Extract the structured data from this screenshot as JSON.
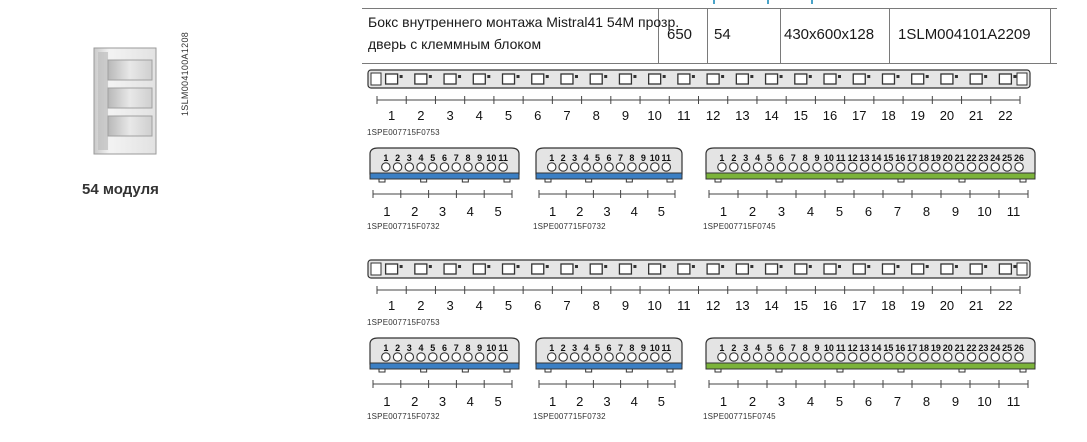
{
  "product": {
    "order_code_vertical": "1SLM004100A1208",
    "modules_caption": "54 модуля"
  },
  "table": {
    "description_line1": "Бокс внутреннего монтажа Mistral41 54M прозр.",
    "description_line2": "дверь с клеммным блоком",
    "weight": "650",
    "modules": "54",
    "dimensions": "430x600x128",
    "order_code": "1SLM004101A2209"
  },
  "strips": [
    {
      "id": "a1",
      "code": "1SPE007715F0753",
      "type": "long",
      "numbers": [
        "1",
        "2",
        "3",
        "4",
        "5",
        "6",
        "7",
        "8",
        "9",
        "10",
        "11",
        "12",
        "13",
        "14",
        "15",
        "16",
        "17",
        "18",
        "19",
        "20",
        "21",
        "22"
      ]
    },
    {
      "id": "b1",
      "code": "1SPE007715F0732",
      "type": "blue",
      "numbers": [
        "1",
        "2",
        "3",
        "4",
        "5"
      ],
      "cap_numbers": [
        "1",
        "2",
        "3",
        "4",
        "5",
        "6",
        "7",
        "8",
        "9",
        "10",
        "11"
      ]
    },
    {
      "id": "c1",
      "code": "1SPE007715F0732",
      "type": "blue",
      "numbers": [
        "1",
        "2",
        "3",
        "4",
        "5"
      ],
      "cap_numbers": [
        "1",
        "2",
        "3",
        "4",
        "5",
        "6",
        "7",
        "8",
        "9",
        "10",
        "11"
      ]
    },
    {
      "id": "d1",
      "code": "1SPE007715F0745",
      "type": "green",
      "numbers": [
        "1",
        "2",
        "3",
        "4",
        "5",
        "6",
        "7",
        "8",
        "9",
        "10",
        "11"
      ],
      "cap_numbers": [
        "1",
        "2",
        "3",
        "4",
        "5",
        "6",
        "7",
        "8",
        "9",
        "10",
        "11",
        "12",
        "13",
        "14",
        "15",
        "16",
        "17",
        "18",
        "19",
        "20",
        "21",
        "22",
        "23",
        "24",
        "25",
        "26"
      ]
    },
    {
      "id": "a2",
      "code": "1SPE007715F0753",
      "type": "long",
      "numbers": [
        "1",
        "2",
        "3",
        "4",
        "5",
        "6",
        "7",
        "8",
        "9",
        "10",
        "11",
        "12",
        "13",
        "14",
        "15",
        "16",
        "17",
        "18",
        "19",
        "20",
        "21",
        "22"
      ]
    },
    {
      "id": "b2",
      "code": "1SPE007715F0732",
      "type": "blue",
      "numbers": [
        "1",
        "2",
        "3",
        "4",
        "5"
      ],
      "cap_numbers": [
        "1",
        "2",
        "3",
        "4",
        "5",
        "6",
        "7",
        "8",
        "9",
        "10",
        "11"
      ]
    },
    {
      "id": "c2",
      "code": "1SPE007715F0732",
      "type": "blue",
      "numbers": [
        "1",
        "2",
        "3",
        "4",
        "5"
      ],
      "cap_numbers": [
        "1",
        "2",
        "3",
        "4",
        "5",
        "6",
        "7",
        "8",
        "9",
        "10",
        "11"
      ]
    },
    {
      "id": "d2",
      "code": "1SPE007715F0745",
      "type": "green",
      "numbers": [
        "1",
        "2",
        "3",
        "4",
        "5",
        "6",
        "7",
        "8",
        "9",
        "10",
        "11"
      ],
      "cap_numbers": [
        "1",
        "2",
        "3",
        "4",
        "5",
        "6",
        "7",
        "8",
        "9",
        "10",
        "11",
        "12",
        "13",
        "14",
        "15",
        "16",
        "17",
        "18",
        "19",
        "20",
        "21",
        "22",
        "23",
        "24",
        "25",
        "26"
      ]
    }
  ],
  "colors": {
    "blue_rail": "#3b7fc4",
    "green_rail": "#7bb33a",
    "body_grey": "#d9d9d9",
    "outline": "#333333",
    "table_accent": "#4aa3c8"
  }
}
